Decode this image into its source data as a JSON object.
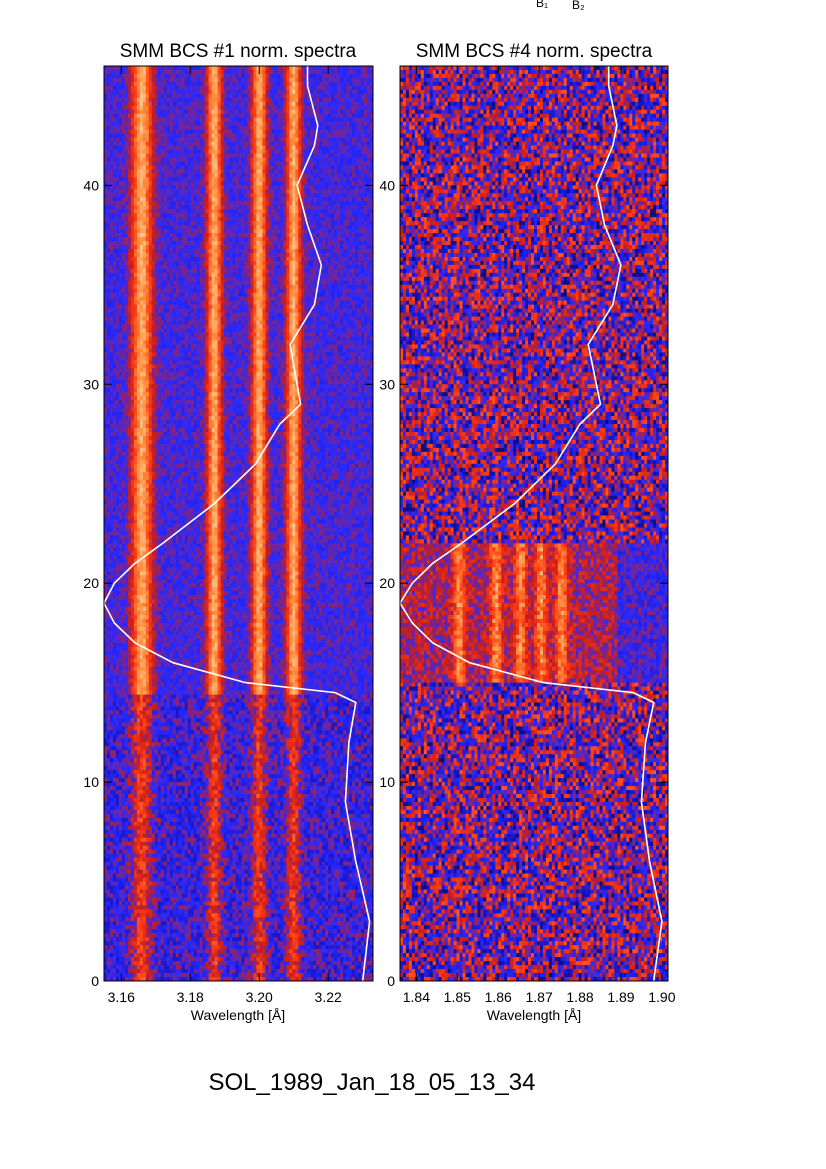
{
  "figure": {
    "footer": "SOL_1989_Jan_18_05_13_34",
    "top_markers": [
      "B₁",
      "B₂"
    ]
  },
  "chart_data": [
    {
      "type": "heatmap",
      "title": "SMM BCS #1 norm. spectra",
      "xlabel": "Wavelength [Å]",
      "ylabel": "",
      "xlim": [
        3.155,
        3.233
      ],
      "ylim": [
        0,
        46
      ],
      "xticks": [
        3.16,
        3.18,
        3.2,
        3.22
      ],
      "xtick_labels": [
        "3.16",
        "3.18",
        "3.20",
        "3.22"
      ],
      "yticks": [
        0,
        10,
        20,
        30,
        40
      ],
      "ytick_labels": [
        "0",
        "10",
        "20",
        "30",
        "40"
      ],
      "colormap": [
        "#000000",
        "#1414c8",
        "#2a2aff",
        "#c81e1e",
        "#ff3c14",
        "#ff8c3c",
        "#ffd29a"
      ],
      "bright_lines_wavelength": [
        3.166,
        3.187,
        3.2,
        3.21
      ],
      "flare_interval_y": [
        14.5,
        46
      ],
      "lightcurve": {
        "color": "#ffffff",
        "y": [
          0,
          3,
          6,
          9,
          12,
          14,
          14.5,
          15,
          16,
          17,
          18,
          19,
          20,
          21,
          22,
          24,
          26,
          28,
          29,
          30,
          32,
          34,
          36,
          38,
          40,
          42,
          43,
          45,
          46
        ],
        "x": [
          3.23,
          3.232,
          3.228,
          3.225,
          3.226,
          3.228,
          3.222,
          3.196,
          3.175,
          3.164,
          3.158,
          3.155,
          3.158,
          3.164,
          3.172,
          3.187,
          3.199,
          3.206,
          3.212,
          3.211,
          3.209,
          3.216,
          3.218,
          3.214,
          3.211,
          3.216,
          3.217,
          3.214,
          3.214
        ]
      }
    },
    {
      "type": "heatmap",
      "title": "SMM BCS #4 norm. spectra",
      "xlabel": "Wavelength [Å]",
      "ylabel": "",
      "xlim": [
        1.836,
        1.9015
      ],
      "ylim": [
        0,
        46
      ],
      "xticks": [
        1.84,
        1.85,
        1.86,
        1.87,
        1.88,
        1.89,
        1.9
      ],
      "xtick_labels": [
        "1.84",
        "1.85",
        "1.86",
        "1.87",
        "1.88",
        "1.89",
        "1.90"
      ],
      "yticks": [
        0,
        10,
        20,
        30,
        40
      ],
      "ytick_labels": [
        "0",
        "10",
        "20",
        "30",
        "40"
      ],
      "colormap": [
        "#000000",
        "#1414c8",
        "#2a2aff",
        "#c81e1e",
        "#ff3c14",
        "#ff8c3c",
        "#ffd29a"
      ],
      "bright_lines_wavelength": [
        1.8505,
        1.8595,
        1.8655,
        1.8705,
        1.8755
      ],
      "flare_interval_y": [
        15,
        22
      ],
      "lightcurve": {
        "color": "#ffffff",
        "y": [
          0,
          3,
          6,
          9,
          12,
          14,
          14.5,
          15,
          16,
          17,
          18,
          19,
          20,
          21,
          22,
          24,
          26,
          28,
          29,
          30,
          32,
          34,
          36,
          38,
          40,
          42,
          43,
          45,
          46
        ],
        "x": [
          1.898,
          1.9,
          1.897,
          1.895,
          1.896,
          1.898,
          1.893,
          1.871,
          1.853,
          1.844,
          1.839,
          1.836,
          1.839,
          1.844,
          1.851,
          1.864,
          1.874,
          1.88,
          1.885,
          1.884,
          1.882,
          1.888,
          1.89,
          1.886,
          1.884,
          1.888,
          1.889,
          1.887,
          1.887
        ]
      }
    }
  ]
}
